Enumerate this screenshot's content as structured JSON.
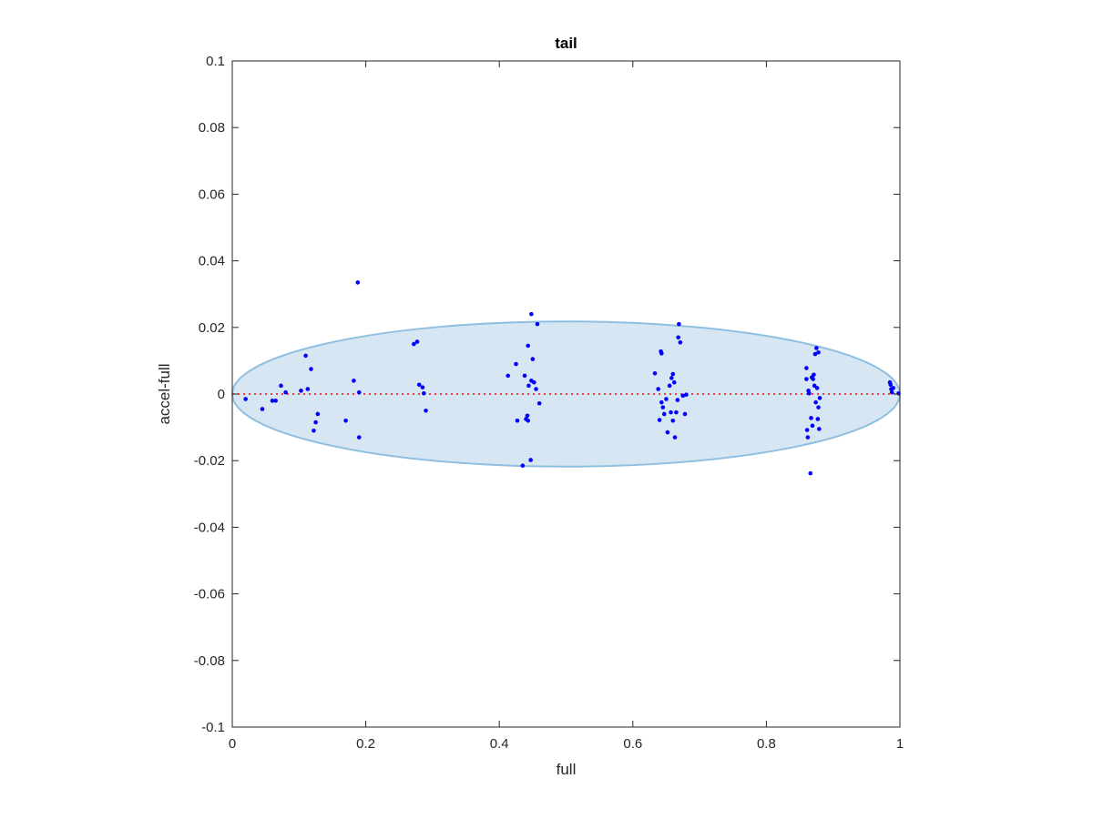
{
  "chart_data": {
    "type": "scatter",
    "title": "tail",
    "xlabel": "full",
    "ylabel": "accel-full",
    "xlim": [
      0,
      1
    ],
    "ylim": [
      -0.1,
      0.1
    ],
    "x_ticks": [
      0,
      0.2,
      0.4,
      0.6,
      0.8,
      1
    ],
    "x_tick_labels": [
      "0",
      "0.2",
      "0.4",
      "0.6",
      "0.8",
      "1"
    ],
    "y_ticks": [
      -0.1,
      -0.08,
      -0.06,
      -0.04,
      -0.02,
      0,
      0.02,
      0.04,
      0.06,
      0.08,
      0.1
    ],
    "y_tick_labels": [
      "-0.1",
      "-0.08",
      "-0.06",
      "-0.04",
      "-0.02",
      "0",
      "0.02",
      "0.04",
      "0.06",
      "0.08",
      "0.1"
    ],
    "grid": false,
    "box": true,
    "reference_line": {
      "y": 0,
      "style": "dotted",
      "color": "#ff0000"
    },
    "ellipse": {
      "cx": 0.5,
      "cy": 0,
      "rx": 0.5,
      "ry": 0.0218,
      "fill": "#d6e6f3",
      "stroke": "#8fbfe0"
    },
    "series": [
      {
        "color": "#0000ff",
        "points": [
          [
            0.02,
            -0.0015
          ],
          [
            0.045,
            -0.0045
          ],
          [
            0.06,
            -0.002
          ],
          [
            0.065,
            -0.002
          ],
          [
            0.073,
            0.0025
          ],
          [
            0.08,
            0.0005
          ],
          [
            0.103,
            0.001
          ],
          [
            0.11,
            0.0115
          ],
          [
            0.113,
            0.0015
          ],
          [
            0.118,
            0.0075
          ],
          [
            0.122,
            -0.011
          ],
          [
            0.125,
            -0.0085
          ],
          [
            0.128,
            -0.006
          ],
          [
            0.17,
            -0.008
          ],
          [
            0.182,
            0.004
          ],
          [
            0.188,
            0.0335
          ],
          [
            0.19,
            0.0005
          ],
          [
            0.19,
            -0.013
          ],
          [
            0.272,
            0.015
          ],
          [
            0.277,
            0.0157
          ],
          [
            0.28,
            0.0028
          ],
          [
            0.285,
            0.002
          ],
          [
            0.287,
            0.0002
          ],
          [
            0.29,
            -0.005
          ],
          [
            0.413,
            0.0055
          ],
          [
            0.425,
            0.009
          ],
          [
            0.427,
            -0.008
          ],
          [
            0.435,
            -0.0215
          ],
          [
            0.438,
            0.0055
          ],
          [
            0.44,
            -0.0075
          ],
          [
            0.442,
            -0.0065
          ],
          [
            0.443,
            -0.008
          ],
          [
            0.443,
            0.0145
          ],
          [
            0.444,
            0.0025
          ],
          [
            0.447,
            -0.0198
          ],
          [
            0.448,
            0.004
          ],
          [
            0.448,
            0.024
          ],
          [
            0.45,
            0.0105
          ],
          [
            0.452,
            0.0035
          ],
          [
            0.455,
            0.0015
          ],
          [
            0.457,
            0.021
          ],
          [
            0.46,
            -0.0028
          ],
          [
            0.633,
            0.0062
          ],
          [
            0.638,
            0.0015
          ],
          [
            0.64,
            -0.0078
          ],
          [
            0.642,
            0.0128
          ],
          [
            0.643,
            0.0122
          ],
          [
            0.643,
            -0.0025
          ],
          [
            0.645,
            -0.004
          ],
          [
            0.647,
            -0.006
          ],
          [
            0.65,
            -0.0015
          ],
          [
            0.652,
            -0.0115
          ],
          [
            0.655,
            0.0025
          ],
          [
            0.657,
            -0.0055
          ],
          [
            0.658,
            0.0048
          ],
          [
            0.66,
            -0.008
          ],
          [
            0.66,
            0.006
          ],
          [
            0.662,
            0.0035
          ],
          [
            0.663,
            -0.013
          ],
          [
            0.665,
            -0.0055
          ],
          [
            0.667,
            -0.0018
          ],
          [
            0.668,
            0.017
          ],
          [
            0.669,
            0.021
          ],
          [
            0.671,
            0.0155
          ],
          [
            0.675,
            -0.0005
          ],
          [
            0.678,
            -0.006
          ],
          [
            0.68,
            -0.0002
          ],
          [
            0.86,
            0.0078
          ],
          [
            0.86,
            0.0045
          ],
          [
            0.861,
            -0.0108
          ],
          [
            0.862,
            -0.013
          ],
          [
            0.863,
            0.001
          ],
          [
            0.864,
            0.0002
          ],
          [
            0.866,
            -0.0238
          ],
          [
            0.867,
            -0.0072
          ],
          [
            0.868,
            0.005
          ],
          [
            0.869,
            -0.0095
          ],
          [
            0.87,
            0.0045
          ],
          [
            0.871,
            0.0058
          ],
          [
            0.872,
            0.0025
          ],
          [
            0.873,
            0.012
          ],
          [
            0.874,
            -0.0025
          ],
          [
            0.875,
            0.0138
          ],
          [
            0.876,
            0.0018
          ],
          [
            0.877,
            -0.0075
          ],
          [
            0.878,
            0.0125
          ],
          [
            0.879,
            -0.0105
          ],
          [
            0.88,
            -0.0012
          ],
          [
            0.878,
            -0.004
          ],
          [
            0.985,
            0.0035
          ],
          [
            0.986,
            0.0028
          ],
          [
            0.987,
            0.0015
          ],
          [
            0.988,
            0.0005
          ],
          [
            0.99,
            0.0018
          ],
          [
            0.998,
            0.0002
          ]
        ]
      }
    ]
  }
}
